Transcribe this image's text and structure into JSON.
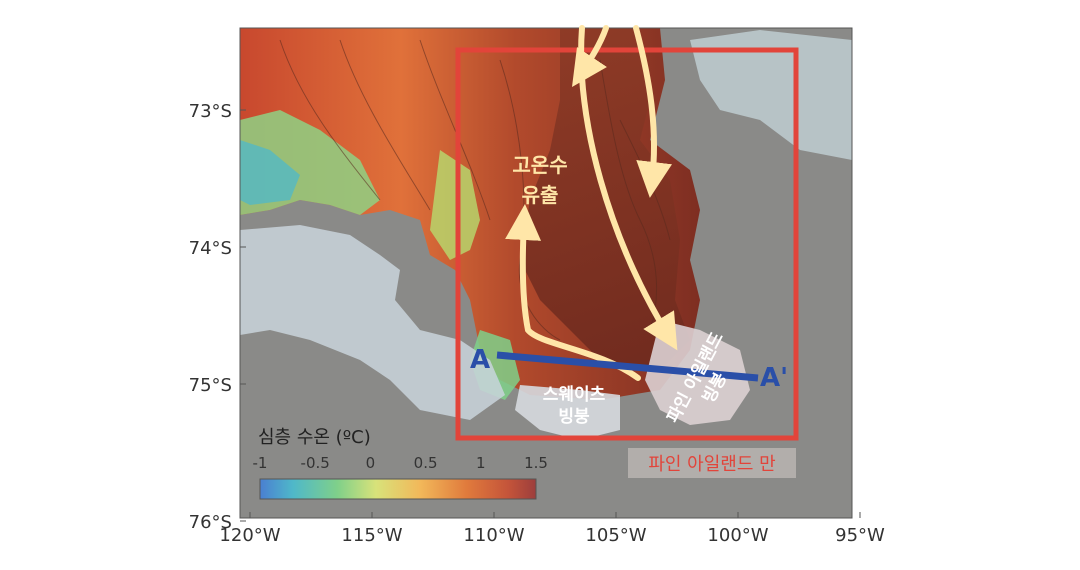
{
  "axes": {
    "lat_ticks": [
      "73°S",
      "74°S",
      "75°S",
      "76°S"
    ],
    "lon_ticks": [
      "120°W",
      "115°W",
      "110°W",
      "105°W",
      "100°W",
      "95°W"
    ]
  },
  "annotations": {
    "warm_outflow_line1": "고온수",
    "warm_outflow_line2": "유출",
    "thwaites_line1": "스웨이츠",
    "thwaites_line2": "빙붕",
    "pine_island_line1": "파인 아일랜드",
    "pine_island_line2": "빙붕",
    "bay": "파인 아일랜드 만",
    "section_start": "A",
    "section_end": "A'"
  },
  "colorbar": {
    "title": "심층 수온 (ºC)",
    "ticks": [
      "-1",
      "-0.5",
      "0",
      "0.5",
      "1",
      "1.5"
    ],
    "min": -1,
    "max": 1.5
  },
  "colors": {
    "land": "#8a8a88",
    "bay_box": "#e2443a",
    "section_line": "#2a4fa8",
    "arrows": "#ffe6a8"
  }
}
